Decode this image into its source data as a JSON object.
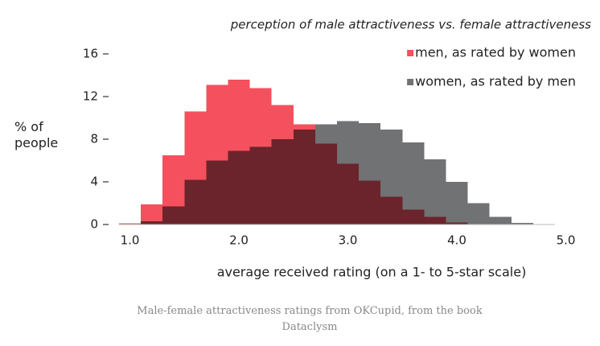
{
  "chart_data": {
    "type": "histogram",
    "title": "perception of male attractiveness vs. female attractiveness",
    "xlabel": "average received rating (on a 1- to 5-star scale)",
    "ylabel": "% of people",
    "bins": [
      0.9,
      1.1,
      1.3,
      1.5,
      1.7,
      1.9,
      2.1,
      2.3,
      2.5,
      2.7,
      2.9,
      3.1,
      3.3,
      3.5,
      3.7,
      3.9,
      4.1,
      4.3,
      4.5,
      4.7
    ],
    "series": [
      {
        "name": "men, as rated by women",
        "color": "#f4505e",
        "values": [
          0.1,
          1.9,
          6.5,
          10.6,
          13.1,
          13.6,
          12.8,
          11.2,
          9.4,
          7.6,
          5.7,
          4.1,
          2.6,
          1.4,
          0.7,
          0.2,
          0,
          0,
          0
        ]
      },
      {
        "name": "women, as rated by men",
        "color": "#707274",
        "values": [
          0,
          0.3,
          1.7,
          4.2,
          6.0,
          6.9,
          7.3,
          8.0,
          8.9,
          9.4,
          9.7,
          9.5,
          8.9,
          7.7,
          6.1,
          4.0,
          2.0,
          0.7,
          0.15
        ]
      }
    ],
    "xlim": [
      0.9,
      5.0
    ],
    "xticks": [
      {
        "value": 1,
        "label": "1.0"
      },
      {
        "value": 2,
        "label": "2.0"
      },
      {
        "value": 3,
        "label": "3.0"
      },
      {
        "value": 4,
        "label": "4.0"
      },
      {
        "value": 5,
        "label": "5.0"
      }
    ],
    "ylim": [
      0,
      16
    ],
    "yticks": [
      0,
      4,
      8,
      12,
      16
    ],
    "legend": "upper right",
    "overlap": "multiply"
  },
  "caption": "Male-female attractiveness ratings from OKCupid, from the book Dataclysm"
}
